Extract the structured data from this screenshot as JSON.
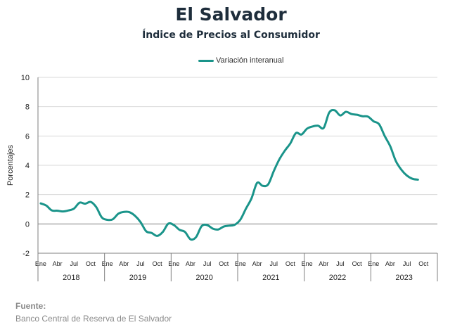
{
  "header": {
    "title": "El Salvador",
    "subtitle": "Índice de Precios al Consumidor"
  },
  "source": {
    "label": "Fuente:",
    "text": "Banco Central de Reserva de El Salvador"
  },
  "colors": {
    "line": "#1a948a",
    "grid": "#d9d9d9",
    "axis": "#7f7f7f",
    "title": "#1e2d3b"
  },
  "chart_data": {
    "type": "line",
    "title": "El Salvador",
    "subtitle": "Índice de Precios al Consumidor",
    "ylabel": "Porcentajes",
    "xlabel": "",
    "ylim": [
      -2,
      10
    ],
    "yticks": [
      -2,
      0,
      2,
      4,
      6,
      8,
      10
    ],
    "grid": true,
    "legend_position": "top-center",
    "month_tick_labels": [
      "Ene",
      "Abr",
      "Jul",
      "Oct"
    ],
    "years": [
      "2018",
      "2019",
      "2020",
      "2021",
      "2022",
      "2023"
    ],
    "x": [
      "2018-01",
      "2018-02",
      "2018-03",
      "2018-04",
      "2018-05",
      "2018-06",
      "2018-07",
      "2018-08",
      "2018-09",
      "2018-10",
      "2018-11",
      "2018-12",
      "2019-01",
      "2019-02",
      "2019-03",
      "2019-04",
      "2019-05",
      "2019-06",
      "2019-07",
      "2019-08",
      "2019-09",
      "2019-10",
      "2019-11",
      "2019-12",
      "2020-01",
      "2020-02",
      "2020-03",
      "2020-04",
      "2020-05",
      "2020-06",
      "2020-07",
      "2020-08",
      "2020-09",
      "2020-10",
      "2020-11",
      "2020-12",
      "2021-01",
      "2021-02",
      "2021-03",
      "2021-04",
      "2021-05",
      "2021-06",
      "2021-07",
      "2021-08",
      "2021-09",
      "2021-10",
      "2021-11",
      "2021-12",
      "2022-01",
      "2022-02",
      "2022-03",
      "2022-04",
      "2022-05",
      "2022-06",
      "2022-07",
      "2022-08",
      "2022-09",
      "2022-10",
      "2022-11",
      "2022-12",
      "2023-01",
      "2023-02",
      "2023-03",
      "2023-04",
      "2023-05",
      "2023-06",
      "2023-07",
      "2023-08",
      "2023-09"
    ],
    "series": [
      {
        "name": "Variación interanual",
        "values": [
          1.4,
          1.25,
          0.92,
          0.9,
          0.85,
          0.92,
          1.05,
          1.45,
          1.38,
          1.5,
          1.15,
          0.45,
          0.28,
          0.32,
          0.7,
          0.82,
          0.8,
          0.55,
          0.12,
          -0.5,
          -0.62,
          -0.82,
          -0.55,
          0.02,
          -0.08,
          -0.4,
          -0.55,
          -1.05,
          -0.9,
          -0.15,
          -0.08,
          -0.32,
          -0.38,
          -0.18,
          -0.12,
          -0.05,
          0.3,
          1.05,
          1.75,
          2.8,
          2.6,
          2.7,
          3.6,
          4.4,
          5.0,
          5.5,
          6.2,
          6.1,
          6.5,
          6.65,
          6.7,
          6.55,
          7.6,
          7.75,
          7.4,
          7.65,
          7.5,
          7.45,
          7.35,
          7.32,
          7.0,
          6.8,
          6.0,
          5.3,
          4.3,
          3.7,
          3.3,
          3.08,
          3.02
        ]
      }
    ]
  }
}
